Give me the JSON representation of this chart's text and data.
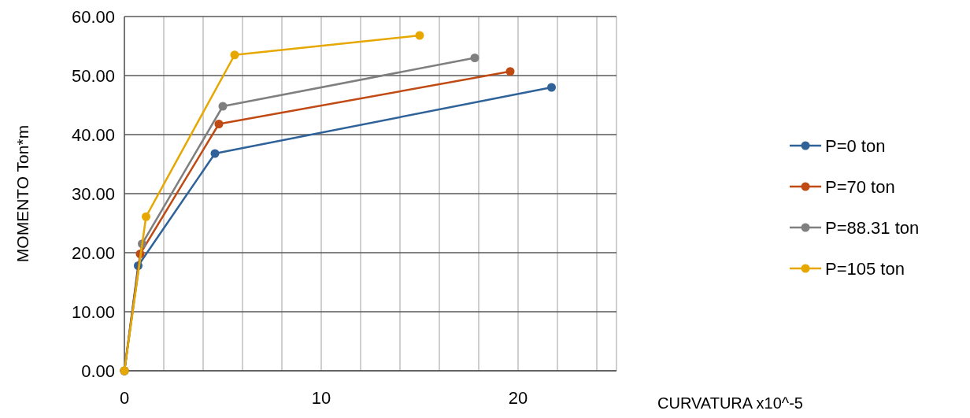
{
  "chart_data": {
    "type": "line",
    "xlabel": "CURVATURA x10^-5",
    "ylabel": "MOMENTO Ton*m",
    "xlim": [
      0,
      25
    ],
    "xticks": [
      0,
      {
        "value": 2,
        "label": null
      },
      {
        "value": 4,
        "label": null
      },
      {
        "value": 6,
        "label": null
      },
      {
        "value": 8,
        "label": null
      },
      10,
      {
        "value": 12,
        "label": null
      },
      {
        "value": 14,
        "label": null
      },
      {
        "value": 16,
        "label": null
      },
      {
        "value": 18,
        "label": null
      },
      20,
      {
        "value": 22,
        "label": null
      },
      {
        "value": 24,
        "label": null
      }
    ],
    "ylim": [
      0,
      60
    ],
    "yticks": [
      {
        "value": 0,
        "label": "0.00"
      },
      {
        "value": 10,
        "label": "10.00"
      },
      {
        "value": 20,
        "label": "20.00"
      },
      {
        "value": 30,
        "label": "30.00"
      },
      {
        "value": 40,
        "label": "40.00"
      },
      {
        "value": 50,
        "label": "50.00"
      },
      {
        "value": 60,
        "label": "60.00"
      }
    ],
    "grid": true,
    "legend": "right",
    "marker": "circle",
    "line_style": "solid",
    "series": [
      {
        "name": "P=0 ton",
        "color": "#2e6299",
        "x": [
          0,
          0.7,
          4.6,
          21.7
        ],
        "values": [
          0,
          17.8,
          36.8,
          48
        ]
      },
      {
        "name": "P=70 ton",
        "color": "#c04a14",
        "x": [
          0,
          0.8,
          4.8,
          19.6
        ],
        "values": [
          0,
          19.8,
          41.8,
          50.7
        ]
      },
      {
        "name": "P=88.31 ton",
        "color": "#7f7f7f",
        "x": [
          0,
          0.9,
          5.0,
          17.8
        ],
        "values": [
          0,
          21.5,
          44.8,
          53
        ]
      },
      {
        "name": "P=105 ton",
        "color": "#e6a800",
        "x": [
          0,
          1.1,
          5.6,
          15.0
        ],
        "values": [
          0,
          26.1,
          53.5,
          56.8
        ]
      }
    ]
  }
}
